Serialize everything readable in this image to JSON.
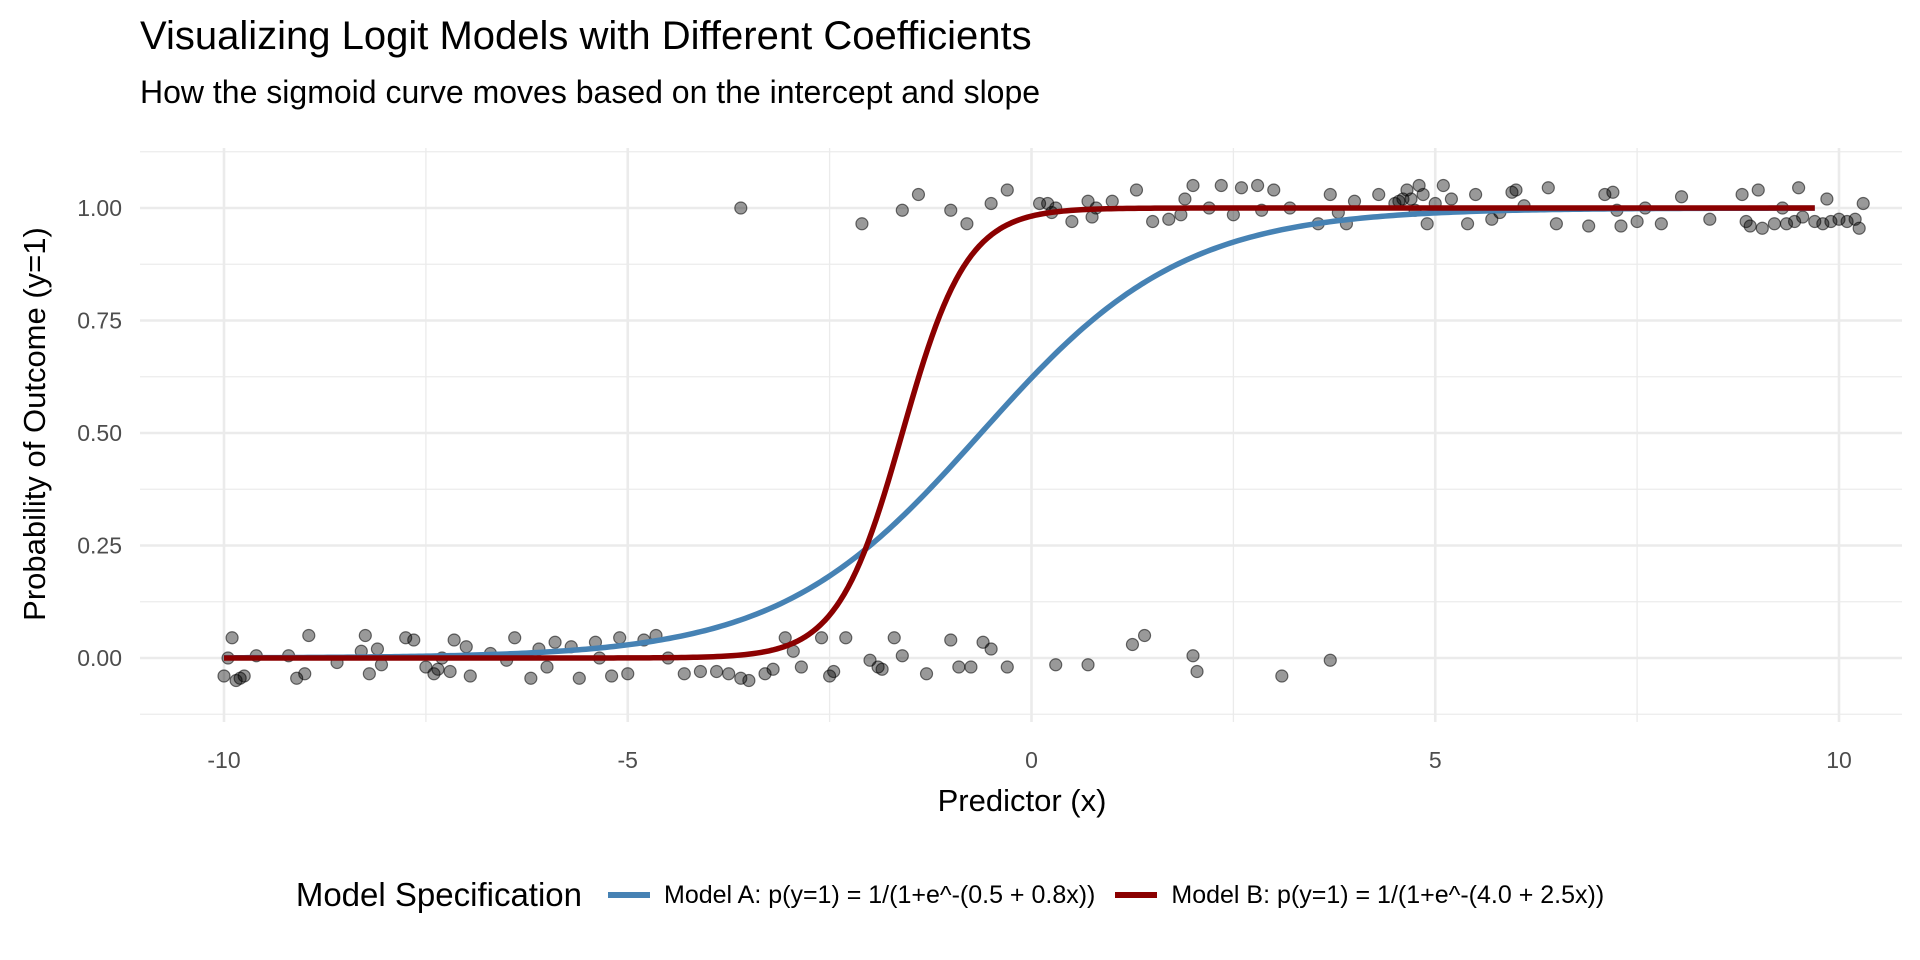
{
  "chart_data": {
    "type": "line",
    "title": "Visualizing Logit Models with Different Coefficients",
    "subtitle": "How the sigmoid curve moves based on the intercept and slope",
    "xlabel": "Predictor (x)",
    "ylabel": "Probability of Outcome (y=1)",
    "xlim": [
      -10.4,
      10.8
    ],
    "ylim": [
      -0.12,
      1.12
    ],
    "x_ticks": [
      -10,
      -5,
      0,
      5,
      10
    ],
    "x_tick_labels": [
      "-10",
      "-5",
      "0",
      "5",
      "10"
    ],
    "y_ticks": [
      0,
      0.25,
      0.5,
      0.75,
      1
    ],
    "y_tick_labels": [
      "0.00",
      "0.25",
      "0.50",
      "0.75",
      "1.00"
    ],
    "grid": true,
    "legend": {
      "title": "Model Specification",
      "position": "bottom",
      "entries": [
        {
          "label": "Model A: p(y=1) = 1/(1+e^-(0.5 + 0.8x))",
          "color": "#4682B4"
        },
        {
          "label": "Model B: p(y=1) = 1/(1+e^-(4.0 + 2.5x))",
          "color": "#8B0000"
        }
      ]
    },
    "series": [
      {
        "name": "Model A",
        "kind": "line",
        "intercept": 0.5,
        "slope": 0.8,
        "x_range": [
          -10,
          9.7
        ],
        "color": "#4682B4"
      },
      {
        "name": "Model B",
        "kind": "line",
        "intercept": 4.0,
        "slope": 2.5,
        "x_range": [
          -10,
          9.7
        ],
        "color": "#8B0000"
      },
      {
        "name": "Observed outcomes (jittered)",
        "kind": "scatter",
        "color": "#000000",
        "opacity": 0.4,
        "points_y0": [
          [
            -10.0,
            -0.04
          ],
          [
            -9.95,
            0.0
          ],
          [
            -9.9,
            0.045
          ],
          [
            -9.85,
            -0.05
          ],
          [
            -9.8,
            -0.045
          ],
          [
            -9.75,
            -0.04
          ],
          [
            -9.6,
            0.005
          ],
          [
            -9.2,
            0.005
          ],
          [
            -9.1,
            -0.045
          ],
          [
            -9.0,
            -0.035
          ],
          [
            -8.95,
            0.05
          ],
          [
            -8.6,
            -0.01
          ],
          [
            -8.3,
            0.015
          ],
          [
            -8.25,
            0.05
          ],
          [
            -8.2,
            -0.035
          ],
          [
            -8.1,
            0.02
          ],
          [
            -8.05,
            -0.015
          ],
          [
            -7.75,
            0.045
          ],
          [
            -7.65,
            0.04
          ],
          [
            -7.5,
            -0.02
          ],
          [
            -7.4,
            -0.035
          ],
          [
            -7.35,
            -0.025
          ],
          [
            -7.3,
            0.0
          ],
          [
            -7.2,
            -0.03
          ],
          [
            -7.15,
            0.04
          ],
          [
            -7.0,
            0.025
          ],
          [
            -6.95,
            -0.04
          ],
          [
            -6.7,
            0.01
          ],
          [
            -6.5,
            -0.005
          ],
          [
            -6.4,
            0.045
          ],
          [
            -6.2,
            -0.045
          ],
          [
            -6.1,
            0.02
          ],
          [
            -6.0,
            -0.02
          ],
          [
            -5.9,
            0.035
          ],
          [
            -5.7,
            0.025
          ],
          [
            -5.6,
            -0.045
          ],
          [
            -5.4,
            0.035
          ],
          [
            -5.35,
            0.0
          ],
          [
            -5.2,
            -0.04
          ],
          [
            -5.1,
            0.045
          ],
          [
            -5.0,
            -0.035
          ],
          [
            -4.8,
            0.04
          ],
          [
            -4.65,
            0.05
          ],
          [
            -4.5,
            0.0
          ],
          [
            -4.3,
            -0.035
          ],
          [
            -4.1,
            -0.03
          ],
          [
            -3.9,
            -0.03
          ],
          [
            -3.75,
            -0.035
          ],
          [
            -3.6,
            -0.045
          ],
          [
            -3.5,
            -0.05
          ],
          [
            -3.3,
            -0.035
          ],
          [
            -3.2,
            -0.025
          ],
          [
            -3.05,
            0.045
          ],
          [
            -2.95,
            0.015
          ],
          [
            -2.85,
            -0.02
          ],
          [
            -2.6,
            0.045
          ],
          [
            -2.5,
            -0.04
          ],
          [
            -2.45,
            -0.03
          ],
          [
            -2.3,
            0.045
          ],
          [
            -2.0,
            -0.005
          ],
          [
            -1.9,
            -0.02
          ],
          [
            -1.85,
            -0.025
          ],
          [
            -1.7,
            0.045
          ],
          [
            -1.6,
            0.005
          ],
          [
            -1.3,
            -0.035
          ],
          [
            -1.0,
            0.04
          ],
          [
            -0.9,
            -0.02
          ],
          [
            -0.75,
            -0.02
          ],
          [
            -0.6,
            0.035
          ],
          [
            -0.5,
            0.02
          ],
          [
            -0.3,
            -0.02
          ],
          [
            0.3,
            -0.015
          ],
          [
            0.7,
            -0.015
          ],
          [
            1.25,
            0.03
          ],
          [
            1.4,
            0.05
          ],
          [
            2.0,
            0.005
          ],
          [
            2.05,
            -0.03
          ],
          [
            3.1,
            -0.04
          ],
          [
            3.7,
            -0.005
          ]
        ],
        "points_y1": [
          [
            -3.6,
            1.0
          ],
          [
            -2.1,
            0.965
          ],
          [
            -1.6,
            0.995
          ],
          [
            -1.4,
            1.03
          ],
          [
            -1.0,
            0.995
          ],
          [
            -0.8,
            0.965
          ],
          [
            -0.5,
            1.01
          ],
          [
            -0.3,
            1.04
          ],
          [
            0.1,
            1.01
          ],
          [
            0.2,
            1.01
          ],
          [
            0.25,
            0.99
          ],
          [
            0.3,
            1.0
          ],
          [
            0.5,
            0.97
          ],
          [
            0.7,
            1.015
          ],
          [
            0.75,
            0.98
          ],
          [
            0.8,
            1.0
          ],
          [
            1.0,
            1.015
          ],
          [
            1.3,
            1.04
          ],
          [
            1.5,
            0.97
          ],
          [
            1.7,
            0.975
          ],
          [
            1.85,
            0.985
          ],
          [
            1.9,
            1.02
          ],
          [
            2.0,
            1.05
          ],
          [
            2.2,
            1.0
          ],
          [
            2.35,
            1.05
          ],
          [
            2.5,
            0.985
          ],
          [
            2.6,
            1.045
          ],
          [
            2.8,
            1.05
          ],
          [
            2.85,
            0.995
          ],
          [
            3.0,
            1.04
          ],
          [
            3.2,
            1.0
          ],
          [
            3.55,
            0.965
          ],
          [
            3.7,
            1.03
          ],
          [
            3.8,
            0.99
          ],
          [
            3.9,
            0.965
          ],
          [
            4.0,
            1.015
          ],
          [
            4.3,
            1.03
          ],
          [
            4.5,
            1.01
          ],
          [
            4.55,
            1.015
          ],
          [
            4.6,
            1.02
          ],
          [
            4.65,
            1.04
          ],
          [
            4.7,
            1.02
          ],
          [
            4.75,
            0.995
          ],
          [
            4.8,
            1.05
          ],
          [
            4.85,
            1.03
          ],
          [
            4.9,
            0.965
          ],
          [
            5.0,
            1.01
          ],
          [
            5.1,
            1.05
          ],
          [
            5.2,
            1.02
          ],
          [
            5.4,
            0.965
          ],
          [
            5.5,
            1.03
          ],
          [
            5.7,
            0.975
          ],
          [
            5.8,
            0.99
          ],
          [
            5.95,
            1.035
          ],
          [
            6.0,
            1.04
          ],
          [
            6.1,
            1.005
          ],
          [
            6.4,
            1.045
          ],
          [
            6.5,
            0.965
          ],
          [
            6.9,
            0.96
          ],
          [
            7.1,
            1.03
          ],
          [
            7.2,
            1.035
          ],
          [
            7.25,
            0.995
          ],
          [
            7.3,
            0.96
          ],
          [
            7.5,
            0.97
          ],
          [
            7.6,
            1.0
          ],
          [
            7.8,
            0.965
          ],
          [
            8.05,
            1.025
          ],
          [
            8.4,
            0.975
          ],
          [
            8.8,
            1.03
          ],
          [
            8.85,
            0.97
          ],
          [
            8.9,
            0.96
          ],
          [
            9.0,
            1.04
          ],
          [
            9.05,
            0.955
          ],
          [
            9.2,
            0.965
          ],
          [
            9.3,
            1.0
          ],
          [
            9.35,
            0.965
          ],
          [
            9.45,
            0.97
          ],
          [
            9.5,
            1.045
          ],
          [
            9.55,
            0.98
          ],
          [
            9.7,
            0.97
          ],
          [
            9.8,
            0.965
          ],
          [
            9.85,
            1.02
          ],
          [
            9.9,
            0.97
          ],
          [
            10.0,
            0.975
          ],
          [
            10.1,
            0.97
          ],
          [
            10.2,
            0.975
          ],
          [
            10.25,
            0.955
          ],
          [
            10.3,
            1.01
          ]
        ]
      }
    ]
  }
}
